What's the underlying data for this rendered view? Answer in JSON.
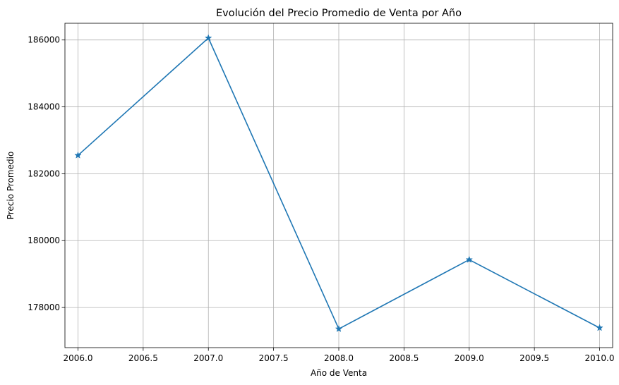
{
  "chart_data": {
    "type": "line",
    "title": "Evolución del Precio Promedio de Venta por Año",
    "xlabel": "Año de Venta",
    "ylabel": "Precio Promedio",
    "xlim": [
      2005.9,
      2010.1
    ],
    "ylim": [
      176800,
      186500
    ],
    "grid": true,
    "x_ticks": [
      2006.0,
      2006.5,
      2007.0,
      2007.5,
      2008.0,
      2008.5,
      2009.0,
      2009.5,
      2010.0
    ],
    "x_tick_labels": [
      "2006.0",
      "2006.5",
      "2007.0",
      "2007.5",
      "2008.0",
      "2008.5",
      "2009.0",
      "2009.5",
      "2010.0"
    ],
    "y_ticks": [
      178000,
      180000,
      182000,
      184000,
      186000
    ],
    "y_tick_labels": [
      "178000",
      "180000",
      "182000",
      "184000",
      "186000"
    ],
    "marker": "star",
    "color": "#1f77b4",
    "series": [
      {
        "x": [
          2006,
          2007,
          2008,
          2009,
          2010
        ],
        "values": [
          182550,
          186060,
          177360,
          179430,
          177390
        ]
      }
    ]
  }
}
